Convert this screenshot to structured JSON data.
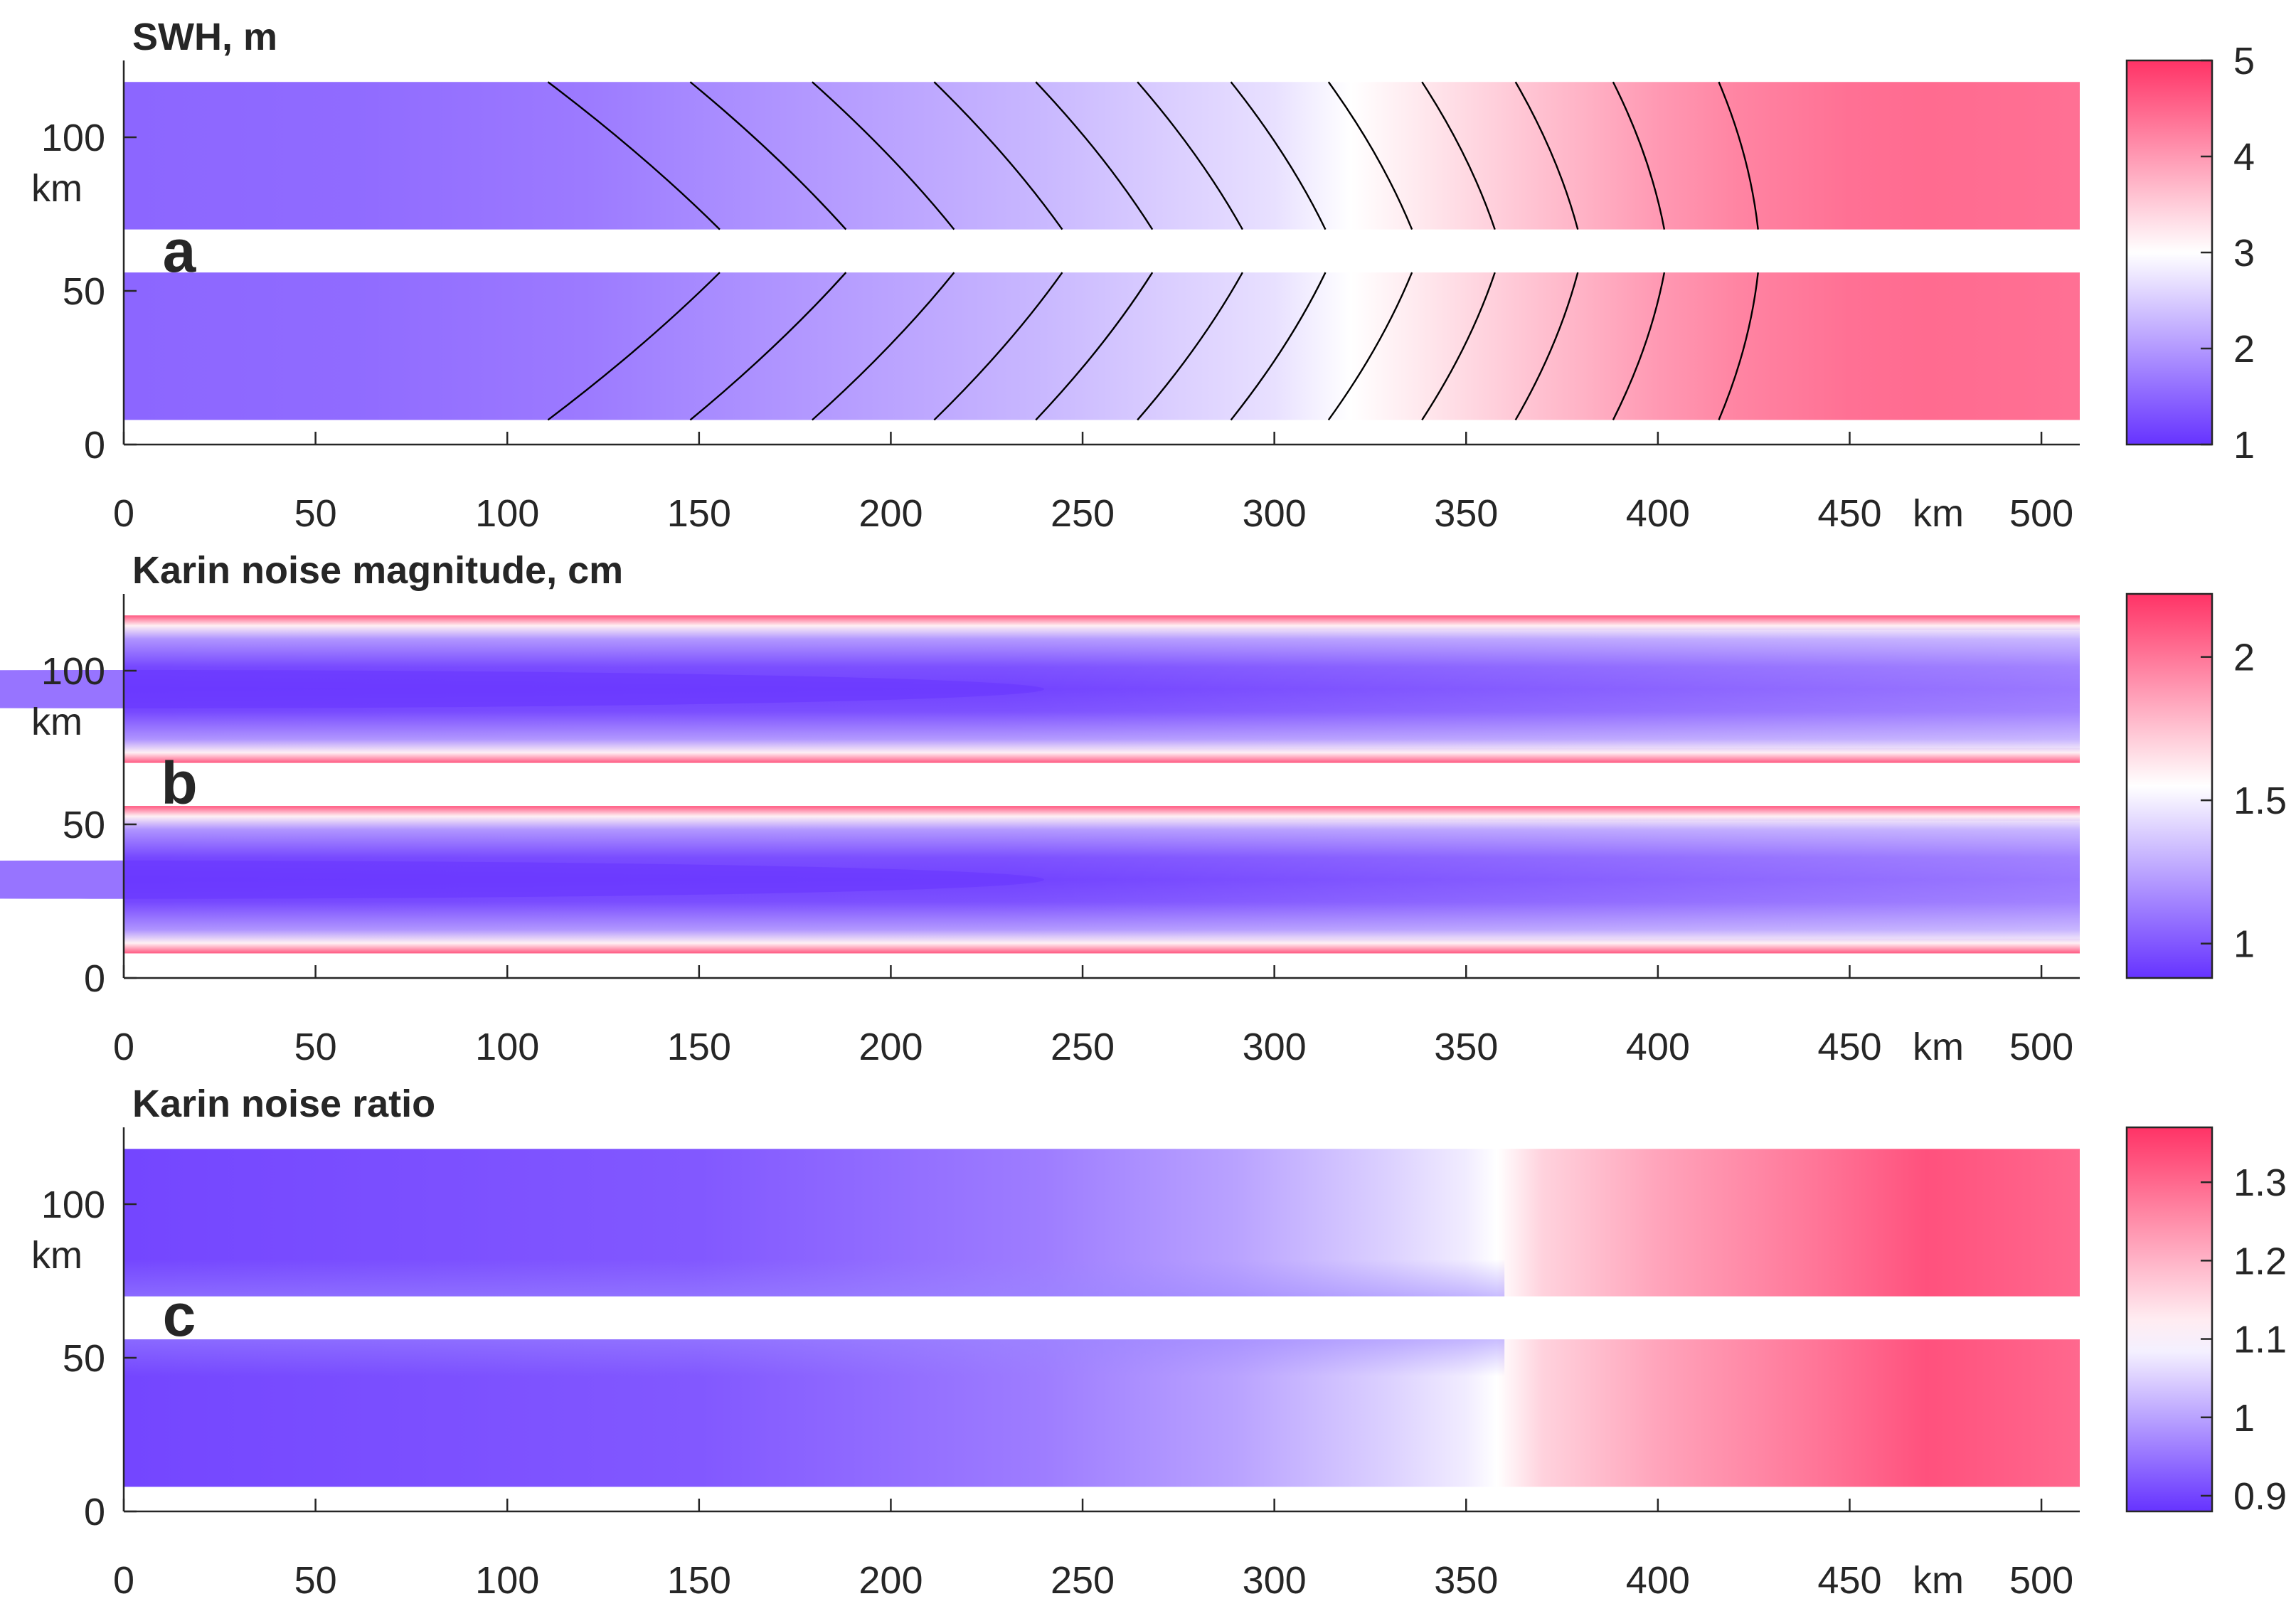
{
  "chart_data": [
    {
      "type": "contour",
      "panel_label": "a",
      "title": "SWH, m",
      "xlabel": "km",
      "ylabel": "km",
      "xlim": [
        0,
        510
      ],
      "ylim": [
        0,
        125
      ],
      "x_ticks": [
        0,
        50,
        100,
        150,
        200,
        250,
        300,
        350,
        400,
        450,
        500
      ],
      "y_ticks": [
        0,
        50,
        100
      ],
      "swath_bands": [
        [
          8,
          56
        ],
        [
          70,
          118
        ]
      ],
      "field_stops": [
        {
          "x": 0,
          "value": 1.5
        },
        {
          "x": 60,
          "value": 1.55
        },
        {
          "x": 120,
          "value": 1.7
        },
        {
          "x": 150,
          "value": 1.85
        },
        {
          "x": 180,
          "value": 2.0
        },
        {
          "x": 210,
          "value": 2.15
        },
        {
          "x": 240,
          "value": 2.3
        },
        {
          "x": 270,
          "value": 2.5
        },
        {
          "x": 300,
          "value": 2.7
        },
        {
          "x": 320,
          "value": 3.0
        },
        {
          "x": 340,
          "value": 3.25
        },
        {
          "x": 360,
          "value": 3.5
        },
        {
          "x": 380,
          "value": 3.75
        },
        {
          "x": 400,
          "value": 4.0
        },
        {
          "x": 420,
          "value": 4.2
        },
        {
          "x": 450,
          "value": 4.4
        },
        {
          "x": 470,
          "value": 4.45
        },
        {
          "x": 510,
          "value": 4.4
        }
      ],
      "colorbar": {
        "min": 1,
        "max": 5,
        "ticks": [
          1,
          2,
          3,
          4,
          5
        ],
        "center": 3
      },
      "contour_levels": 20
    },
    {
      "type": "contour",
      "panel_label": "b",
      "title": "Karin noise magnitude, cm",
      "xlabel": "km",
      "ylabel": "km",
      "xlim": [
        0,
        510
      ],
      "ylim": [
        0,
        125
      ],
      "x_ticks": [
        0,
        50,
        100,
        150,
        200,
        250,
        300,
        350,
        400,
        450,
        500
      ],
      "y_ticks": [
        0,
        50,
        100
      ],
      "swath_bands": [
        [
          8,
          56
        ],
        [
          70,
          118
        ]
      ],
      "colorbar": {
        "min": 0.88,
        "max": 2.22,
        "ticks": [
          1,
          1.5,
          2
        ],
        "center": 1.55
      }
    },
    {
      "type": "contour",
      "panel_label": "c",
      "title": "Karin noise ratio",
      "xlabel": "km",
      "ylabel": "km",
      "xlim": [
        0,
        510
      ],
      "ylim": [
        0,
        125
      ],
      "x_ticks": [
        0,
        50,
        100,
        150,
        200,
        250,
        300,
        350,
        400,
        450,
        500
      ],
      "y_ticks": [
        0,
        50,
        100
      ],
      "swath_bands": [
        [
          8,
          56
        ],
        [
          70,
          118
        ]
      ],
      "colorbar": {
        "min": 0.88,
        "max": 1.37,
        "ticks": [
          0.9,
          1,
          1.1,
          1.2,
          1.3
        ],
        "center": 1.1
      }
    }
  ],
  "colors": {
    "low": "#6633ff",
    "mid": "#ffffff",
    "high": "#ff3366"
  },
  "axis_unit_label": "km"
}
